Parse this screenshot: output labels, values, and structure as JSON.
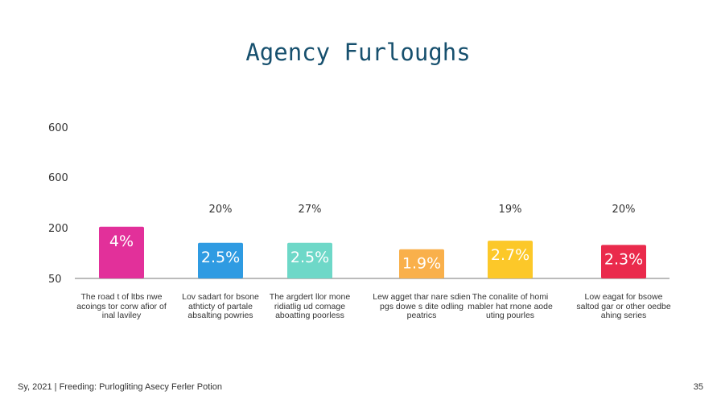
{
  "title": "Agency Furloughs",
  "footer": {
    "left": "Sy, 2021 | Freeding: Purlogliting Asecy Ferler Potion",
    "page_number": "35"
  },
  "chart_data": {
    "type": "bar",
    "title": "Agency Furloughs",
    "xlabel": "",
    "ylabel": "",
    "grid": false,
    "y_tick_labels": [
      "600",
      "600",
      "200",
      "50"
    ],
    "categories": [
      "The road t of ltbs nwe acoings tor corw afior of inal laviley",
      "Lov sadart for bsone athticty of partale absalting powries",
      "The argdert llor mone ridiatlig ud comage aboatting poorless",
      "Lew agget thar nare sdien pgs dowe s dite odling peatrics",
      "The conalite of homi mabler hat rnone aode uting pourles",
      "Low eagat for bsowe saltod gar or other oedbe ahing series"
    ],
    "values": [
      4,
      2.5,
      2.5,
      1.9,
      2.7,
      2.3
    ],
    "bar_labels": [
      "4%",
      "2.5%",
      "2.5%",
      "1.9%",
      "2.7%",
      "2.3%"
    ],
    "top_labels": [
      "",
      "20%",
      "27%",
      "",
      "19%",
      "20%"
    ],
    "colors": [
      "#e2309a",
      "#2f9be2",
      "#6ed8c8",
      "#f9b04b",
      "#fcc829",
      "#ea2a4c"
    ]
  }
}
